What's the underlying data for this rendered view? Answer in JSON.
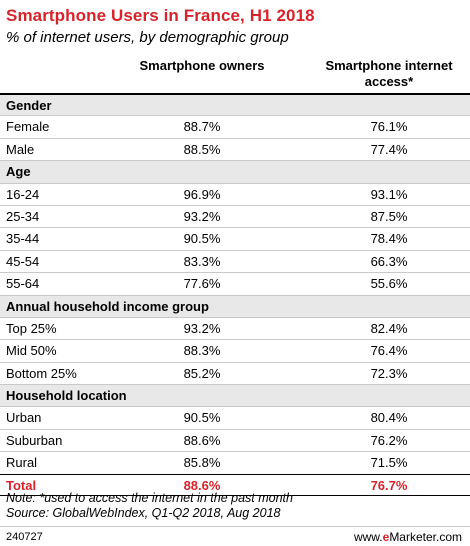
{
  "title": "Smartphone Users in France, H1 2018",
  "subtitle": "% of internet users, by demographic group",
  "chart_data": {
    "type": "table",
    "columns": [
      "Smartphone owners",
      "Smartphone internet access*"
    ],
    "sections": [
      {
        "name": "Gender",
        "rows": [
          {
            "label": "Female",
            "values": [
              "88.7%",
              "76.1%"
            ]
          },
          {
            "label": "Male",
            "values": [
              "88.5%",
              "77.4%"
            ]
          }
        ]
      },
      {
        "name": "Age",
        "rows": [
          {
            "label": "16-24",
            "values": [
              "96.9%",
              "93.1%"
            ]
          },
          {
            "label": "25-34",
            "values": [
              "93.2%",
              "87.5%"
            ]
          },
          {
            "label": "35-44",
            "values": [
              "90.5%",
              "78.4%"
            ]
          },
          {
            "label": "45-54",
            "values": [
              "83.3%",
              "66.3%"
            ]
          },
          {
            "label": "55-64",
            "values": [
              "77.6%",
              "55.6%"
            ]
          }
        ]
      },
      {
        "name": "Annual household income group",
        "rows": [
          {
            "label": "Top 25%",
            "values": [
              "93.2%",
              "82.4%"
            ]
          },
          {
            "label": "Mid 50%",
            "values": [
              "88.3%",
              "76.4%"
            ]
          },
          {
            "label": "Bottom 25%",
            "values": [
              "85.2%",
              "72.3%"
            ]
          }
        ]
      },
      {
        "name": "Household location",
        "rows": [
          {
            "label": "Urban",
            "values": [
              "90.5%",
              "80.4%"
            ]
          },
          {
            "label": "Suburban",
            "values": [
              "88.6%",
              "76.2%"
            ]
          },
          {
            "label": "Rural",
            "values": [
              "85.8%",
              "71.5%"
            ]
          }
        ]
      }
    ],
    "total": {
      "label": "Total",
      "values": [
        "88.6%",
        "76.7%"
      ]
    }
  },
  "note_line1": "Note: *used to access the internet in the past month",
  "note_line2": "Source: GlobalWebIndex, Q1-Q2 2018, Aug 2018",
  "footer": {
    "id": "240727",
    "brand_prefix": "www.",
    "brand_e": "e",
    "brand_rest": "Marketer.com"
  },
  "colors": {
    "accent": "#d6242a",
    "section_bg": "#e8e8e8"
  }
}
